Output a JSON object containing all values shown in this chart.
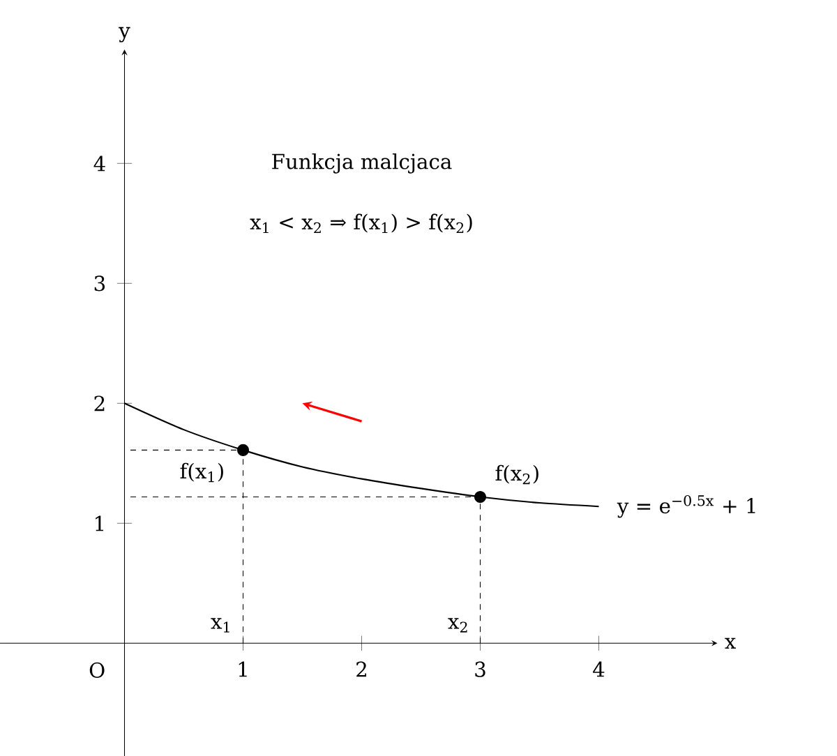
{
  "chart_data": {
    "type": "line",
    "title": "Funkcja malcjaca",
    "subtitle": "x$_{1}$ < x$_{2}$ ⇒ f(x$_{1}$) > f(x$_{2}$)",
    "xlabel": "x",
    "ylabel": "y",
    "xlim": [
      -1.05,
      5.0
    ],
    "ylim": [
      -0.94,
      4.95
    ],
    "xticks": [
      1,
      2,
      3,
      4
    ],
    "yticks": [
      1,
      2,
      3,
      4
    ],
    "grid": false,
    "series": [
      {
        "color": "#000000",
        "marker": "none",
        "x": [
          0,
          0.5,
          1,
          1.5,
          2,
          2.5,
          3,
          3.5,
          4
        ],
        "values": [
          2.0,
          1.78,
          1.61,
          1.47,
          1.37,
          1.29,
          1.22,
          1.17,
          1.14
        ]
      },
      {
        "type": "scatter",
        "color": "#000000",
        "marker": "circle",
        "x": [
          1,
          3
        ],
        "values": [
          1.61,
          1.22
        ]
      }
    ],
    "ref_lines": [
      {
        "axis": "x",
        "value": 1,
        "line_style": "dashed"
      },
      {
        "axis": "x",
        "value": 3,
        "line_style": "dashed"
      },
      {
        "axis": "y",
        "value": 1.61,
        "line_style": "dashed"
      },
      {
        "axis": "y",
        "value": 1.22,
        "line_style": "dashed"
      }
    ],
    "annotations": [
      {
        "text": "f(x$_{1}$)",
        "x": 1,
        "y": 1.61
      },
      {
        "text": "f(x$_{2}$)",
        "x": 3,
        "y": 1.22
      },
      {
        "text": "y = e$^{−0.5x}$ + 1",
        "x": 4,
        "y": 1.14
      },
      "x$_{1}$",
      "x$_{2}$",
      "O"
    ]
  }
}
